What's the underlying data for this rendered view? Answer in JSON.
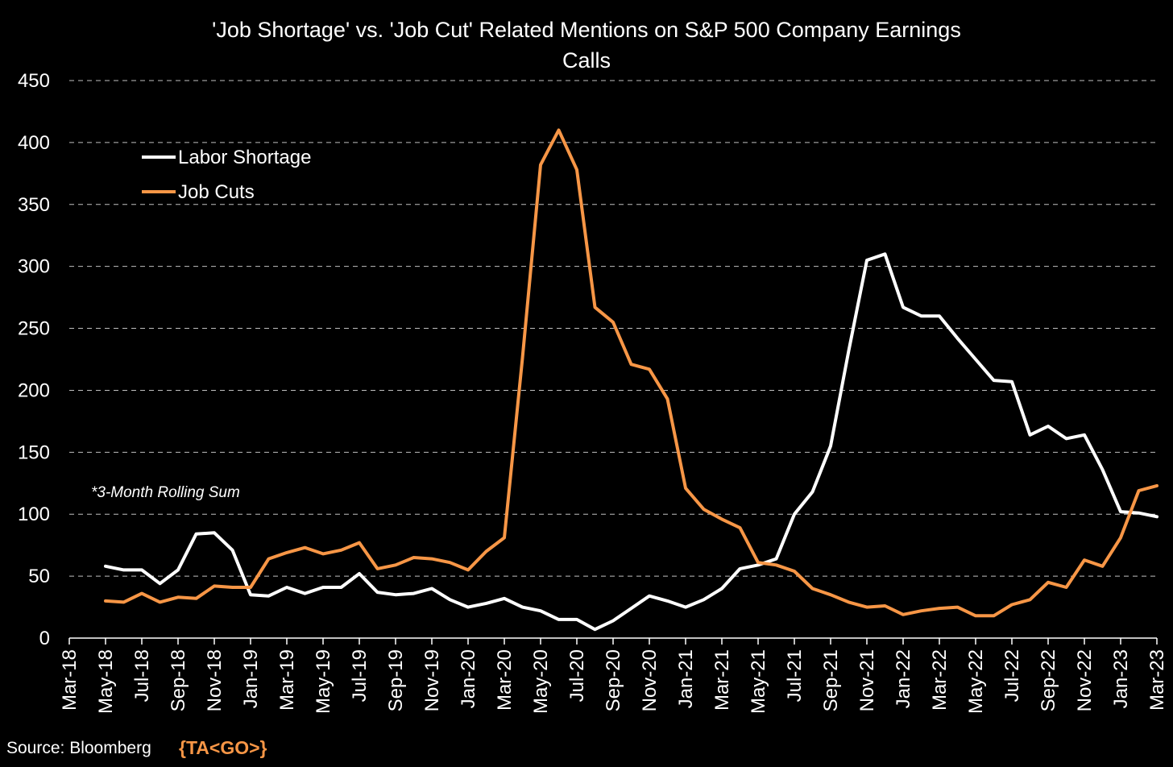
{
  "chart_data": {
    "type": "line",
    "title_lines": [
      "'Job Shortage' vs. 'Job Cut' Related Mentions on S&P 500 Company Earnings",
      "Calls"
    ],
    "xlabel": "",
    "ylabel": "",
    "ylim": [
      0,
      450
    ],
    "yticks": [
      0,
      50,
      100,
      150,
      200,
      250,
      300,
      350,
      400,
      450
    ],
    "ytick_labels": [
      "0",
      "50",
      "100",
      "150",
      "200",
      "250",
      "300",
      "350",
      "400",
      "450"
    ],
    "x_tick_labels": [
      "Mar-18",
      "May-18",
      "Jul-18",
      "Sep-18",
      "Nov-18",
      "Jan-19",
      "Mar-19",
      "May-19",
      "Jul-19",
      "Sep-19",
      "Nov-19",
      "Jan-20",
      "Mar-20",
      "May-20",
      "Jul-20",
      "Sep-20",
      "Nov-20",
      "Jan-21",
      "Mar-21",
      "May-21",
      "Jul-21",
      "Sep-21",
      "Nov-21",
      "Jan-22",
      "Mar-22",
      "May-22",
      "Jul-22",
      "Sep-22",
      "Nov-22",
      "Jan-23",
      "Mar-23"
    ],
    "grid": "horizontal dashed",
    "legend_position": "top-left",
    "x": [
      "May-18",
      "Jun-18",
      "Jul-18",
      "Aug-18",
      "Sep-18",
      "Oct-18",
      "Nov-18",
      "Dec-18",
      "Jan-19",
      "Feb-19",
      "Mar-19",
      "Apr-19",
      "May-19",
      "Jun-19",
      "Jul-19",
      "Aug-19",
      "Sep-19",
      "Oct-19",
      "Nov-19",
      "Dec-19",
      "Jan-20",
      "Feb-20",
      "Mar-20",
      "Apr-20",
      "May-20",
      "Jun-20",
      "Jul-20",
      "Aug-20",
      "Sep-20",
      "Oct-20",
      "Nov-20",
      "Dec-20",
      "Jan-21",
      "Feb-21",
      "Mar-21",
      "Apr-21",
      "May-21",
      "Jun-21",
      "Jul-21",
      "Aug-21",
      "Sep-21",
      "Oct-21",
      "Nov-21",
      "Dec-21",
      "Jan-22",
      "Feb-22",
      "Mar-22",
      "Apr-22",
      "May-22",
      "Jun-22",
      "Jul-22",
      "Aug-22",
      "Sep-22",
      "Oct-22",
      "Nov-22",
      "Dec-22",
      "Jan-23",
      "Feb-23",
      "Mar-23"
    ],
    "series": [
      {
        "name": "Labor Shortage",
        "color": "#ffffff",
        "values": [
          58,
          55,
          55,
          44,
          55,
          84,
          85,
          71,
          35,
          34,
          41,
          36,
          41,
          41,
          52,
          37,
          35,
          36,
          40,
          31,
          25,
          28,
          32,
          25,
          22,
          15,
          15,
          7,
          14,
          24,
          34,
          30,
          25,
          31,
          40,
          56,
          59,
          64,
          100,
          118,
          155,
          232,
          305,
          310,
          267,
          260,
          260,
          242,
          225,
          208,
          207,
          164,
          171,
          161,
          164,
          136,
          102,
          101,
          98
        ]
      },
      {
        "name": "Job Cuts",
        "color": "#f79646",
        "values": [
          30,
          29,
          36,
          29,
          33,
          32,
          42,
          41,
          41,
          64,
          69,
          73,
          68,
          71,
          77,
          56,
          59,
          65,
          64,
          61,
          55,
          70,
          81,
          226,
          382,
          410,
          378,
          267,
          255,
          221,
          217,
          193,
          121,
          104,
          96,
          89,
          61,
          59,
          54,
          40,
          35,
          29,
          25,
          26,
          19,
          22,
          24,
          25,
          18,
          18,
          27,
          31,
          45,
          41,
          63,
          58,
          81,
          119,
          123
        ]
      }
    ],
    "annotation": "*3-Month Rolling Sum"
  },
  "footer": {
    "source_label": "Source: Bloomberg",
    "brand": "{TA<GO>}",
    "brand_color": "#f79646"
  },
  "colors": {
    "background": "#000000",
    "text": "#ffffff",
    "grid": "#bfbfbf"
  }
}
